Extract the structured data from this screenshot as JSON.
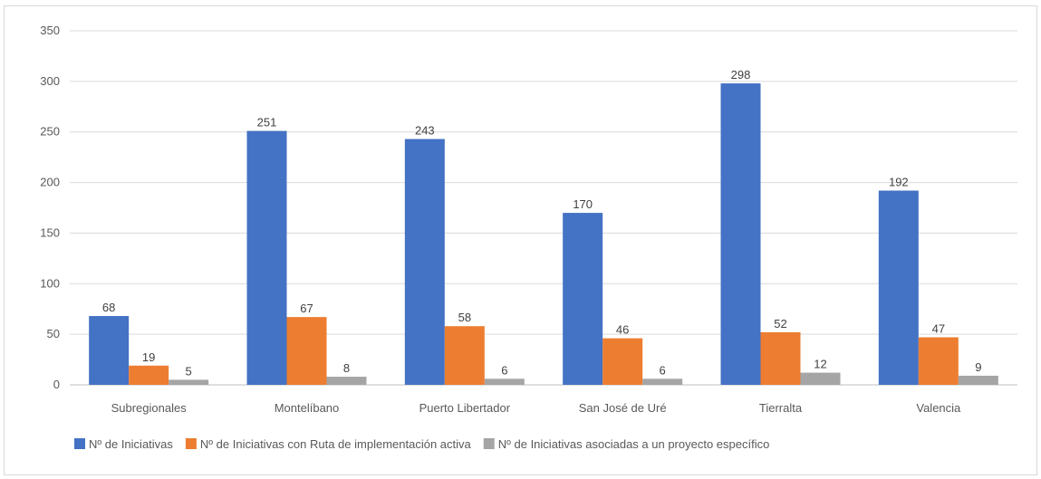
{
  "chart_data": {
    "type": "bar",
    "title": "",
    "xlabel": "",
    "ylabel": "",
    "ylim": [
      0,
      350
    ],
    "yticks": [
      0,
      50,
      100,
      150,
      200,
      250,
      300,
      350
    ],
    "grid": true,
    "legend_position": "bottom",
    "categories": [
      "Subregionales",
      "Montelíbano",
      "Puerto Libertador",
      "San José de Uré",
      "Tierralta",
      "Valencia"
    ],
    "series": [
      {
        "name": "Nº de Iniciativas",
        "color": "#4472c4",
        "values": [
          68,
          251,
          243,
          170,
          298,
          192
        ]
      },
      {
        "name": "Nº de Iniciativas con Ruta de implementación activa",
        "color": "#ed7d31",
        "values": [
          19,
          67,
          58,
          46,
          52,
          47
        ]
      },
      {
        "name": "Nº de Iniciativas asociadas a un proyecto específico",
        "color": "#a5a5a5",
        "values": [
          5,
          8,
          6,
          6,
          12,
          9
        ]
      }
    ]
  }
}
